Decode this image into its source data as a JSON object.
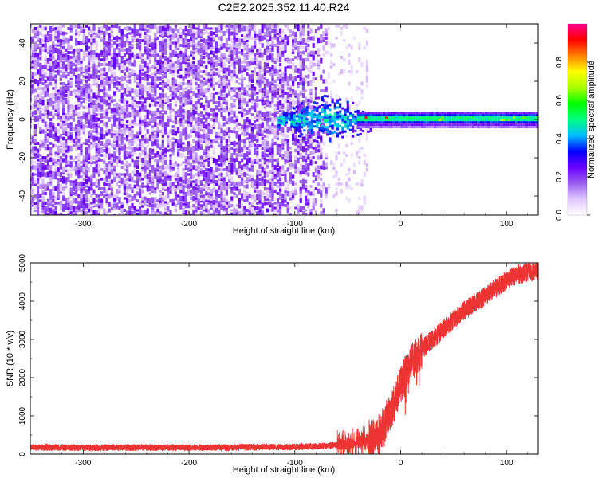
{
  "figure_title": "C2E2.2025.352.11.40.R24",
  "chart_data": [
    {
      "type": "heatmap",
      "title": "C2E2.2025.352.11.40.R24",
      "xlabel": "Height of straight line (km)",
      "ylabel": "Frequency (Hz)",
      "xlim": [
        -350,
        130
      ],
      "ylim": [
        -50,
        50
      ],
      "x_ticks": [
        -300,
        -200,
        -100,
        0,
        100
      ],
      "y_ticks": [
        -40,
        -20,
        0,
        20,
        40
      ],
      "grid": false,
      "description_regions": [
        {
          "x_range": [
            -350,
            -70
          ],
          "freq_range": [
            -50,
            50
          ],
          "amplitude": "low, noisy (0.1-0.3)"
        },
        {
          "x_range": [
            -70,
            -40
          ],
          "freq_range": [
            -50,
            50
          ],
          "amplitude": "sparse noise"
        },
        {
          "x_range": [
            -115,
            -30
          ],
          "freq_range": [
            -12,
            12
          ],
          "amplitude": "0.2-0.5 carrier onset"
        },
        {
          "x_range": [
            -30,
            130
          ],
          "freq_range": [
            -3,
            4
          ],
          "amplitude": "0.3-0.9 carrier band"
        }
      ],
      "colorbar": {
        "label": "Normalized spectral amplitude",
        "range": [
          0,
          1
        ],
        "ticks": [
          0.0,
          0.2,
          0.4,
          0.6,
          0.8
        ],
        "colors": [
          "#ffffff",
          "#e0c8ff",
          "#9a5ef0",
          "#6a00ff",
          "#0000ff",
          "#00bfff",
          "#00ff80",
          "#00ff00",
          "#aaff00",
          "#ffff00",
          "#ff8000",
          "#ff0000",
          "#ff0090"
        ]
      }
    },
    {
      "type": "line",
      "xlabel": "Height of straight line (km)",
      "ylabel": "SNR (10 * v/v)",
      "xlim": [
        -350,
        130
      ],
      "ylim": [
        0,
        5000
      ],
      "x_ticks": [
        -300,
        -200,
        -100,
        0,
        100
      ],
      "y_ticks": [
        0,
        1000,
        2000,
        3000,
        4000,
        5000
      ],
      "grid": false,
      "series": [
        {
          "name": "SNR",
          "color": "#ee3333",
          "x": [
            -350,
            -300,
            -250,
            -200,
            -150,
            -100,
            -80,
            -60,
            -50,
            -40,
            -30,
            -25,
            -20,
            -15,
            -10,
            -5,
            0,
            5,
            10,
            20,
            30,
            40,
            50,
            60,
            70,
            80,
            90,
            100,
            110,
            120,
            130
          ],
          "y": [
            180,
            170,
            175,
            170,
            180,
            190,
            200,
            240,
            280,
            320,
            380,
            450,
            550,
            800,
            1100,
            1400,
            1800,
            2100,
            2400,
            2750,
            3000,
            3250,
            3500,
            3750,
            3950,
            4150,
            4350,
            4550,
            4700,
            4750,
            4800
          ]
        }
      ]
    }
  ]
}
